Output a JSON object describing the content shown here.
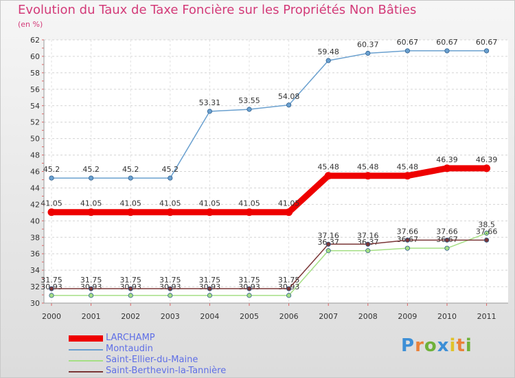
{
  "chart_data": {
    "type": "line",
    "title": "Evolution du Taux de Taxe Foncière sur les Propriétés Non Bâties",
    "subtitle": "(en %)",
    "categories": [
      "2000",
      "2001",
      "2002",
      "2003",
      "2004",
      "2005",
      "2006",
      "2007",
      "2008",
      "2009",
      "2010",
      "2011"
    ],
    "ylim": [
      30,
      62
    ],
    "yticks": [
      30,
      32,
      34,
      36,
      38,
      40,
      42,
      44,
      46,
      48,
      50,
      52,
      54,
      56,
      58,
      60,
      62
    ],
    "series": [
      {
        "name": "Montaudin",
        "color": "#6aa0cf",
        "values": [
          45.2,
          45.2,
          45.2,
          45.2,
          53.31,
          53.55,
          54.08,
          59.48,
          60.37,
          60.67,
          60.67,
          60.67
        ],
        "labels": [
          "45.2",
          "45.2",
          "45.2",
          "45.2",
          "53.31",
          "53.55",
          "54.08",
          "59.48",
          "60.37",
          "60.67",
          "60.67",
          "60.67"
        ]
      },
      {
        "name": "Saint-Ellier-du-Maine",
        "color": "#a5df84",
        "values": [
          30.93,
          30.93,
          30.93,
          30.93,
          30.93,
          30.93,
          30.93,
          36.37,
          36.37,
          36.67,
          36.67,
          38.5
        ],
        "labels": [
          "30.93",
          "30.93",
          "30.93",
          "30.93",
          "30.93",
          "30.93",
          "30.93",
          "36.37",
          "36.37",
          "36.67",
          "36.67",
          "38.5"
        ]
      },
      {
        "name": "Saint-Berthevin-la-Tannière",
        "color": "#7a3636",
        "values": [
          31.75,
          31.75,
          31.75,
          31.75,
          31.75,
          31.75,
          31.75,
          37.16,
          37.16,
          37.66,
          37.66,
          37.66
        ],
        "labels": [
          "31.75",
          "31.75",
          "31.75",
          "31.75",
          "31.75",
          "31.75",
          "31.75",
          "37.16",
          "37.16",
          "37.66",
          "37.66",
          "37.66"
        ]
      },
      {
        "name": "LARCHAMP",
        "color": "#ee0000",
        "values": [
          41.05,
          41.05,
          41.05,
          41.05,
          41.05,
          41.05,
          41.05,
          45.48,
          45.48,
          45.48,
          46.39,
          46.39
        ],
        "labels": [
          "41.05",
          "41.05",
          "41.05",
          "41.05",
          "41.05",
          "41.05",
          "41.05",
          "45.48",
          "45.48",
          "45.48",
          "46.39",
          "46.39"
        ]
      }
    ]
  },
  "legend": [
    {
      "label": "LARCHAMP",
      "color": "#ee0000",
      "text_color": "#5f6fe6"
    },
    {
      "label": "Montaudin",
      "color": "#6aa0cf",
      "text_color": "#5f6fe6"
    },
    {
      "label": "Saint-Ellier-du-Maine",
      "color": "#a5df84",
      "text_color": "#5f6fe6"
    },
    {
      "label": "Saint-Berthevin-la-Tannière",
      "color": "#7a3636",
      "text_color": "#5f6fe6"
    }
  ],
  "logo": {
    "p": "P",
    "r": "r",
    "o": "o",
    "x": "x",
    "i": "i",
    "t": "t",
    "i2": "i"
  }
}
